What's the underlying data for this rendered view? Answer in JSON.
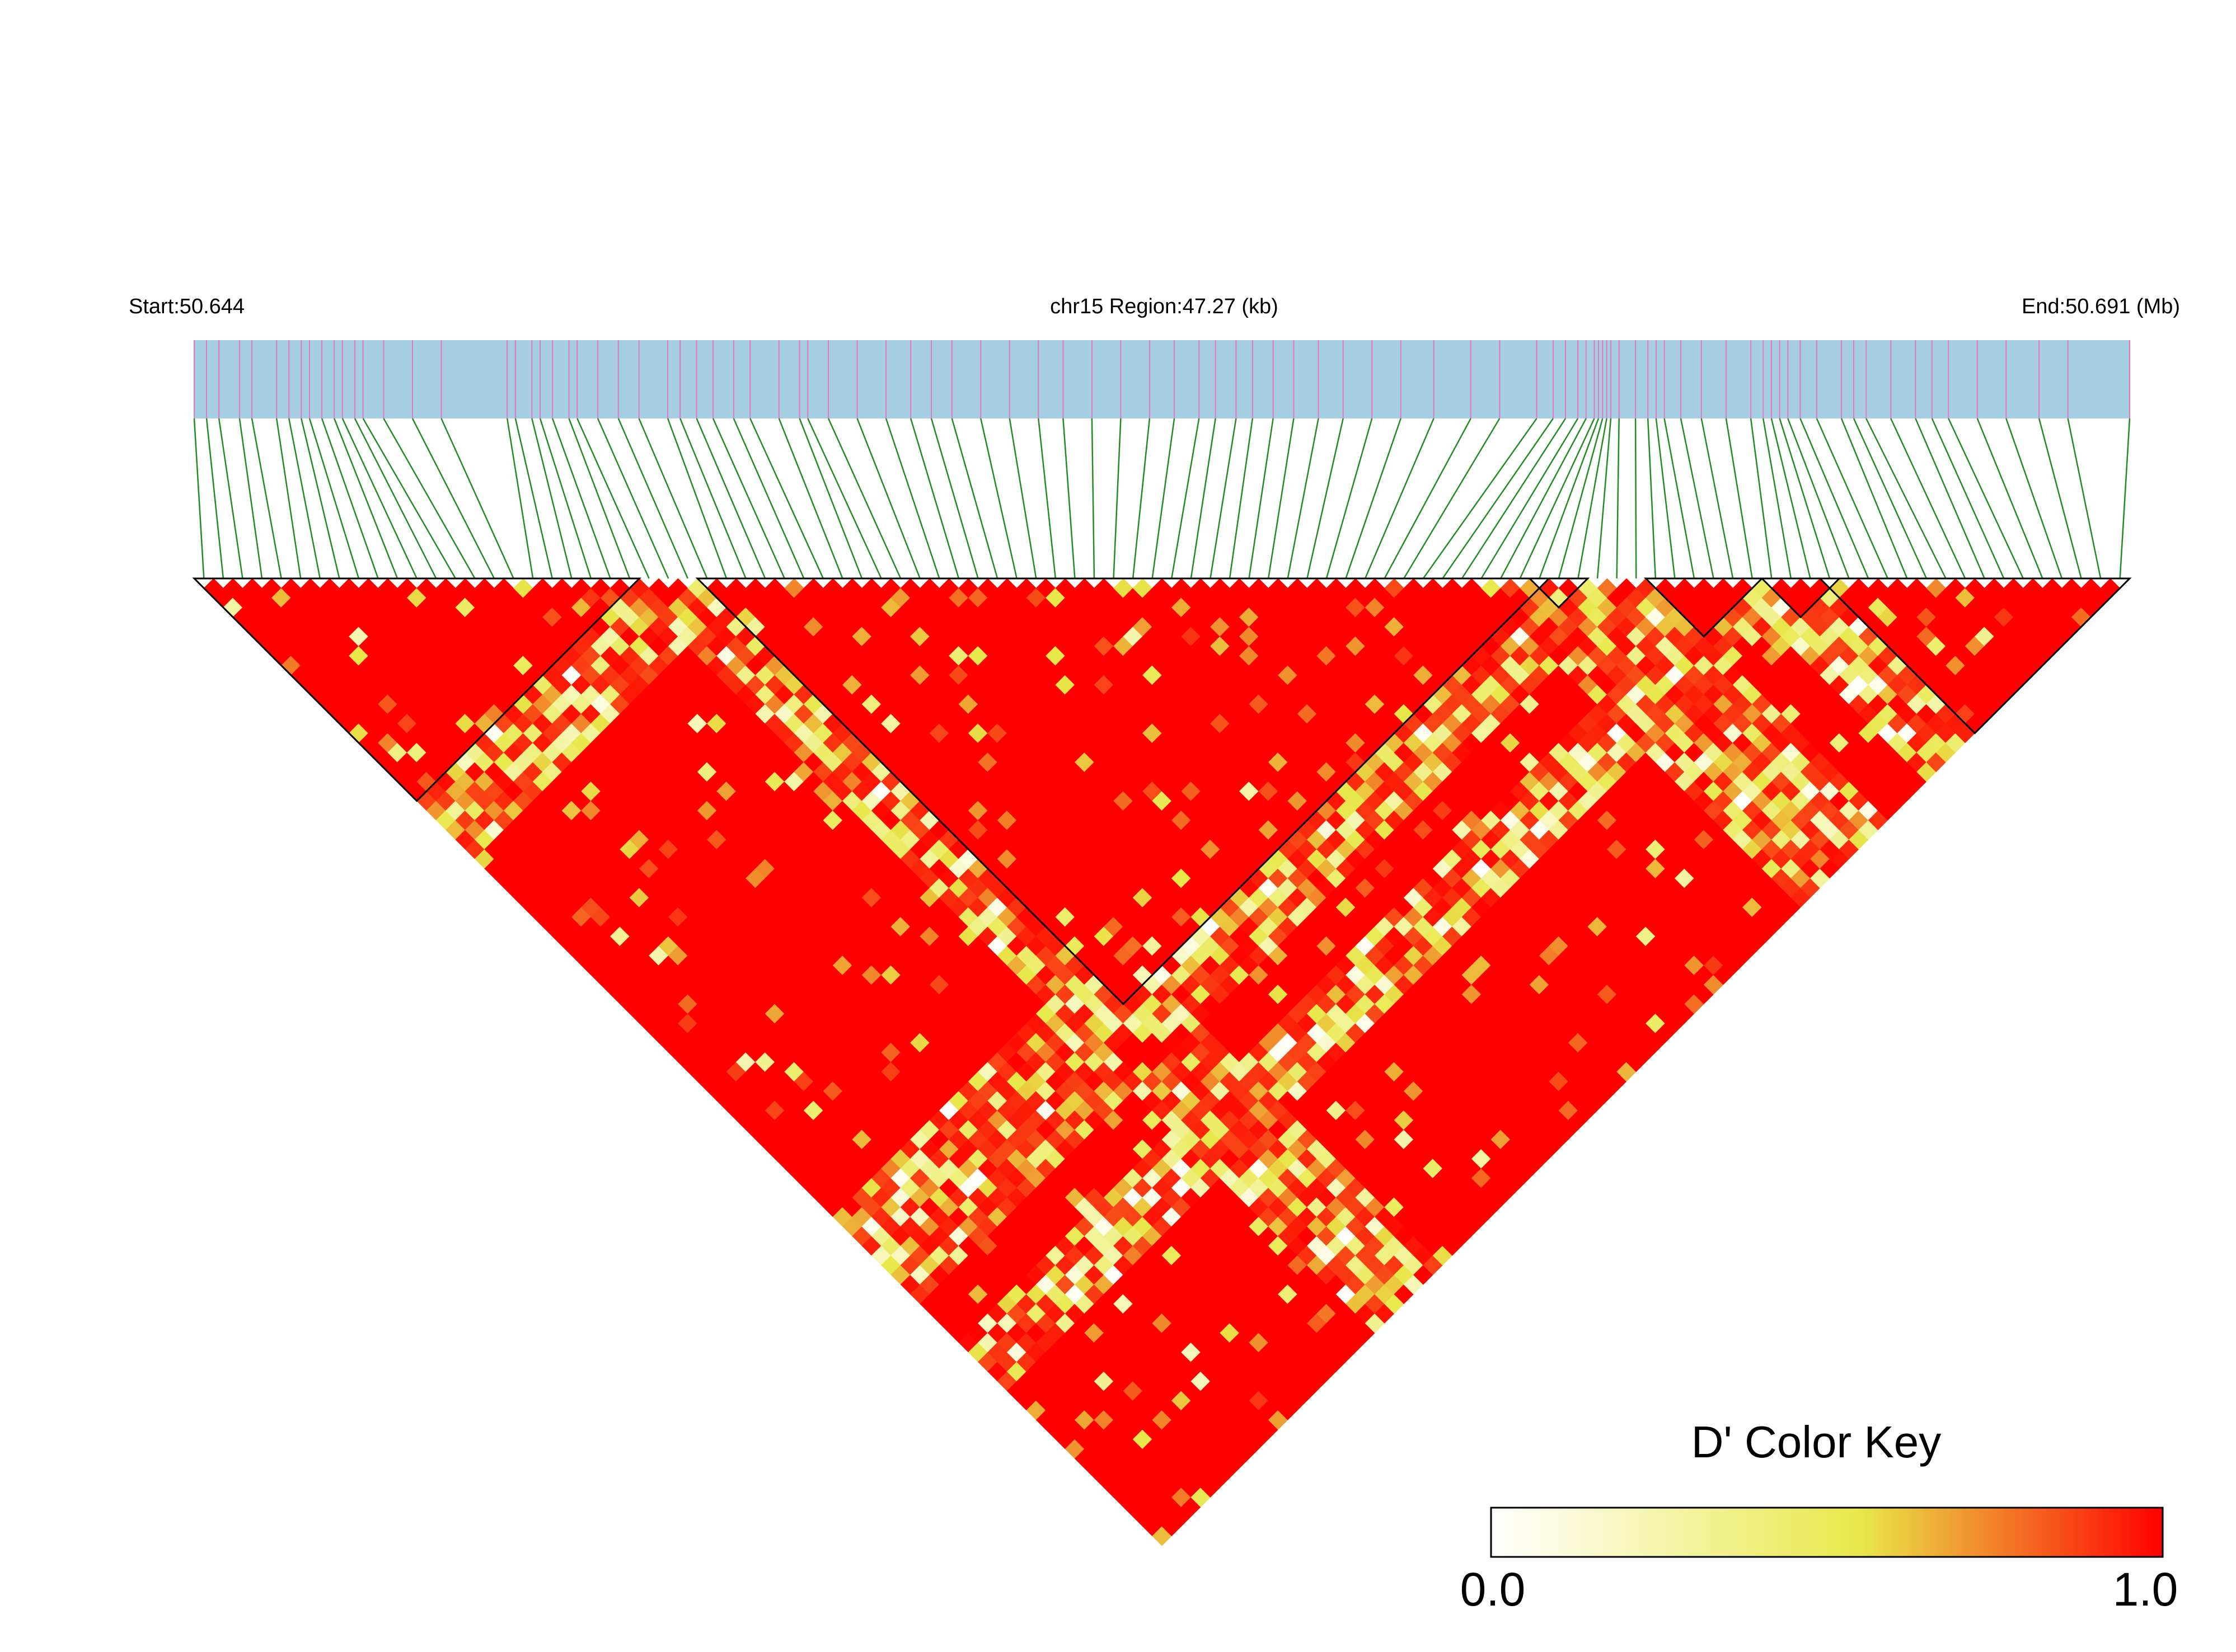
{
  "chart_data": {
    "type": "heatmap",
    "subtype": "LD block heatmap (D')",
    "chromosome": "chr15",
    "header": {
      "start_label": "Start:50.644",
      "region_label": "chr15 Region:47.27 (kb)",
      "end_label": "End:50.691 (Mb)"
    },
    "region": {
      "start_mb": 50.644,
      "end_mb": 50.691,
      "length_kb": 47.27
    },
    "snp_count": 100,
    "snp_positions_mb": [
      50.644,
      50.6443,
      50.6446,
      50.6451,
      50.6454,
      50.646,
      50.6463,
      50.6466,
      50.6468,
      50.6471,
      50.6474,
      50.6476,
      50.6479,
      50.6481,
      50.6486,
      50.6493,
      50.65,
      50.6516,
      50.6518,
      50.6522,
      50.6524,
      50.6527,
      50.6531,
      50.6533,
      50.6538,
      50.6543,
      50.6548,
      50.6555,
      50.6558,
      50.6562,
      50.6566,
      50.6571,
      50.6575,
      50.6582,
      50.6587,
      50.6589,
      50.6594,
      50.6601,
      50.6608,
      50.6614,
      50.6619,
      50.6624,
      50.6631,
      50.6638,
      50.6645,
      50.6651,
      50.6658,
      50.6665,
      50.6672,
      50.6678,
      50.6684,
      50.6688,
      50.6693,
      50.6697,
      50.6702,
      50.6707,
      50.6713,
      50.6719,
      50.6726,
      50.6733,
      50.6741,
      50.675,
      50.6757,
      50.6766,
      50.677,
      50.6773,
      50.6776,
      50.6778,
      50.678,
      50.6781,
      50.6782,
      50.6783,
      50.6784,
      50.6786,
      50.679,
      50.6793,
      50.6795,
      50.6797,
      50.6801,
      50.6806,
      50.6812,
      50.6818,
      50.6821,
      50.6823,
      50.6825,
      50.6827,
      50.683,
      50.6834,
      50.684,
      50.6843,
      50.6846,
      50.6852,
      50.6858,
      50.6862,
      50.6866,
      50.6873,
      50.688,
      50.6888,
      50.6895,
      50.691
    ],
    "ld_blocks": [
      {
        "block": 1,
        "first_snp": 1,
        "last_snp": 23
      },
      {
        "block": 2,
        "first_snp": 27,
        "last_snp": 70
      },
      {
        "block": 3,
        "first_snp": 70,
        "last_snp": 72
      },
      {
        "block": 4,
        "first_snp": 76,
        "last_snp": 81
      },
      {
        "block": 5,
        "first_snp": 82,
        "last_snp": 85
      },
      {
        "block": 6,
        "first_snp": 85,
        "last_snp": 100
      }
    ],
    "colorscale": {
      "title": "D' Color Key",
      "min_label": "0.0",
      "max_label": "1.0",
      "min": 0.0,
      "max": 1.0,
      "stops": [
        "#ffffff",
        "#e8e84a",
        "#ff0000"
      ]
    },
    "note": "Cells: pairwise D' between SNP i and SNP j. Nearly all cells are ~1.0 (red); a minority of cells with lower D' (orange/yellow/white) cluster along the boundaries between LD blocks."
  }
}
